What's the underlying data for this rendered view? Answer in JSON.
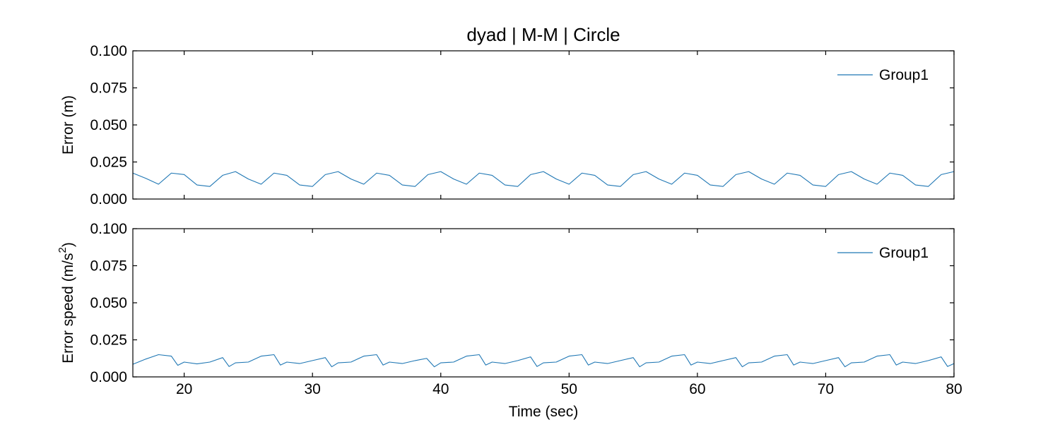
{
  "chart_data": [
    {
      "type": "line",
      "title": "dyad | M-M | Circle",
      "xlabel": "",
      "ylabel": "Error (m)",
      "xlim": [
        16,
        80
      ],
      "ylim": [
        0,
        0.1
      ],
      "xticks": [
        20,
        30,
        40,
        50,
        60,
        70,
        80
      ],
      "xticklabels": [],
      "yticks": [
        0.0,
        0.025,
        0.05,
        0.075,
        0.1
      ],
      "yticklabels": [
        "0.000",
        "0.025",
        "0.050",
        "0.075",
        "0.100"
      ],
      "grid": false,
      "legend": {
        "placement": "top-right",
        "entries": [
          "Group1"
        ]
      },
      "series": [
        {
          "name": "Group1",
          "color": "#1f77b4",
          "x": [
            16.0,
            17.0,
            18.0,
            19.0,
            20.0,
            21.0,
            22.0,
            23.0,
            24.0,
            25.0,
            26.0,
            27.0,
            28.0,
            29.0,
            30.0,
            31.0,
            32.0,
            33.0,
            34.0,
            35.0,
            36.0,
            37.0,
            38.0,
            39.0,
            40.0,
            41.0,
            42.0,
            43.0,
            44.0,
            45.0,
            46.0,
            47.0,
            48.0,
            49.0,
            50.0,
            51.0,
            52.0,
            53.0,
            54.0,
            55.0,
            56.0,
            57.0,
            58.0,
            59.0,
            60.0,
            61.0,
            62.0,
            63.0,
            64.0,
            65.0,
            66.0,
            67.0,
            68.0,
            69.0,
            70.0,
            71.0,
            72.0,
            73.0,
            74.0,
            75.0,
            76.0,
            77.0,
            78.0,
            79.0,
            80.0
          ],
          "y": [
            0.0175,
            0.014,
            0.01,
            0.0175,
            0.0165,
            0.0095,
            0.0085,
            0.016,
            0.0185,
            0.0135,
            0.01,
            0.0175,
            0.016,
            0.0095,
            0.0085,
            0.0165,
            0.0185,
            0.0135,
            0.01,
            0.0175,
            0.016,
            0.0095,
            0.0085,
            0.0165,
            0.0185,
            0.0135,
            0.01,
            0.0175,
            0.016,
            0.0095,
            0.0085,
            0.0165,
            0.0185,
            0.0135,
            0.01,
            0.0175,
            0.016,
            0.0095,
            0.0085,
            0.0165,
            0.0185,
            0.0135,
            0.01,
            0.0175,
            0.016,
            0.0095,
            0.0085,
            0.0165,
            0.0185,
            0.0135,
            0.01,
            0.0175,
            0.016,
            0.0095,
            0.0085,
            0.0165,
            0.0185,
            0.0135,
            0.01,
            0.0175,
            0.016,
            0.0095,
            0.0085,
            0.0165,
            0.0185
          ]
        }
      ]
    },
    {
      "type": "line",
      "title": "",
      "xlabel": "Time (sec)",
      "ylabel": "Error speed (m/s",
      "ylabel_superscript": "2",
      "ylabel_suffix": ")",
      "xlim": [
        16,
        80
      ],
      "ylim": [
        0,
        0.1
      ],
      "xticks": [
        20,
        30,
        40,
        50,
        60,
        70,
        80
      ],
      "xticklabels": [
        "20",
        "30",
        "40",
        "50",
        "60",
        "70",
        "80"
      ],
      "yticks": [
        0.0,
        0.025,
        0.05,
        0.075,
        0.1
      ],
      "yticklabels": [
        "0.000",
        "0.025",
        "0.050",
        "0.075",
        "0.100"
      ],
      "grid": false,
      "legend": {
        "placement": "top-right",
        "entries": [
          "Group1"
        ]
      },
      "series": [
        {
          "name": "Group1",
          "color": "#1f77b4",
          "x": [
            16.0,
            17.0,
            18.0,
            19.0,
            19.5,
            20.0,
            21.0,
            22.0,
            23.0,
            23.5,
            24.0,
            25.0,
            26.0,
            27.0,
            27.5,
            28.0,
            29.0,
            30.0,
            31.0,
            31.5,
            32.0,
            33.0,
            34.0,
            35.0,
            35.5,
            36.0,
            37.0,
            38.0,
            38.9,
            39.5,
            40.0,
            41.0,
            42.0,
            43.0,
            43.5,
            44.0,
            45.0,
            46.0,
            47.0,
            47.5,
            48.0,
            49.0,
            50.0,
            51.0,
            51.5,
            52.0,
            53.0,
            54.0,
            55.0,
            55.5,
            56.0,
            57.0,
            58.0,
            59.0,
            59.5,
            60.0,
            61.0,
            62.0,
            63.0,
            63.5,
            64.0,
            65.0,
            66.0,
            67.0,
            67.5,
            68.0,
            69.0,
            70.0,
            71.0,
            71.5,
            72.0,
            73.0,
            74.0,
            75.0,
            75.5,
            76.0,
            77.0,
            78.0,
            79.0,
            79.5,
            80.0
          ],
          "y": [
            0.0085,
            0.012,
            0.015,
            0.014,
            0.0078,
            0.01,
            0.0088,
            0.01,
            0.013,
            0.007,
            0.0095,
            0.01,
            0.014,
            0.015,
            0.008,
            0.01,
            0.009,
            0.011,
            0.013,
            0.0068,
            0.0095,
            0.01,
            0.014,
            0.015,
            0.008,
            0.01,
            0.009,
            0.011,
            0.0125,
            0.0068,
            0.0095,
            0.01,
            0.014,
            0.015,
            0.008,
            0.01,
            0.009,
            0.011,
            0.0135,
            0.007,
            0.0095,
            0.01,
            0.014,
            0.015,
            0.008,
            0.01,
            0.009,
            0.011,
            0.013,
            0.0068,
            0.0095,
            0.01,
            0.014,
            0.015,
            0.008,
            0.01,
            0.009,
            0.011,
            0.013,
            0.0068,
            0.0095,
            0.01,
            0.014,
            0.015,
            0.008,
            0.01,
            0.009,
            0.011,
            0.013,
            0.0068,
            0.0095,
            0.01,
            0.014,
            0.015,
            0.008,
            0.01,
            0.009,
            0.011,
            0.0135,
            0.007,
            0.009
          ]
        }
      ]
    }
  ]
}
